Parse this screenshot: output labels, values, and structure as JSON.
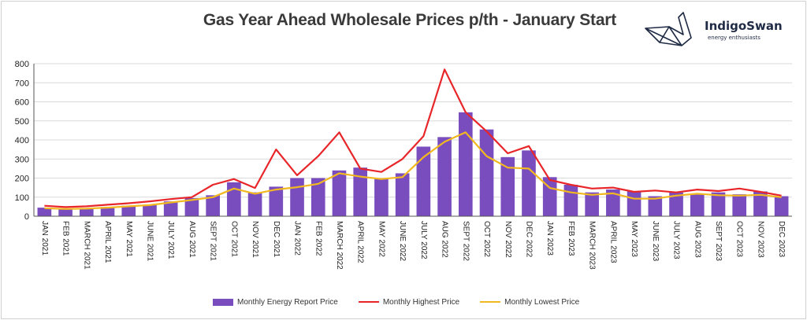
{
  "logo": {
    "name": "IndigoSwan",
    "tagline": "energy enthusiasts"
  },
  "colors": {
    "bar": "#7a4dbf",
    "high": "#e8262a",
    "low": "#f2b820",
    "grid": "#d9d9d9",
    "axis": "#555555"
  },
  "chart_data": {
    "type": "bar",
    "title": "Gas Year Ahead Wholesale Prices p/th - January Start",
    "xlabel": "",
    "ylabel": "",
    "ylim": [
      0,
      800
    ],
    "yticks": [
      0,
      100,
      200,
      300,
      400,
      500,
      600,
      700,
      800
    ],
    "grid": true,
    "legend_position": "bottom",
    "categories": [
      "JAN 2021",
      "FEB 2021",
      "MARCH 2021",
      "APRIL 2021",
      "MAY 2021",
      "JUNE 2021",
      "JULY 2021",
      "AUG 2021",
      "SEPT 2021",
      "OCT 2021",
      "NOV 2021",
      "DEC 2021",
      "JAN 2022",
      "FEB 2022",
      "MARCH 2022",
      "APRIL 2022",
      "MAY 2022",
      "JUNE 2022",
      "JULY 2022",
      "AUG 2022",
      "SEPT 2022",
      "OCT 2022",
      "NOV 2022",
      "DEC 2022",
      "JAN 2023",
      "FEB 2023",
      "MARCH 2023",
      "APRIL 2023",
      "MAY 2023",
      "JUNE 2023",
      "JULY 2023",
      "AUG 2023",
      "SEPT 2023",
      "OCT 2023",
      "NOV 2023",
      "DEC 2023"
    ],
    "series": [
      {
        "name": "Monthly Energy Report Price",
        "kind": "bar",
        "values": [
          45,
          40,
          42,
          48,
          55,
          60,
          78,
          95,
          110,
          178,
          125,
          155,
          200,
          200,
          240,
          255,
          200,
          225,
          365,
          415,
          545,
          455,
          310,
          345,
          205,
          165,
          125,
          140,
          130,
          105,
          125,
          115,
          125,
          115,
          130,
          105
        ]
      },
      {
        "name": "Monthly Highest Price",
        "kind": "line",
        "values": [
          55,
          48,
          52,
          60,
          68,
          78,
          90,
          100,
          165,
          195,
          148,
          350,
          215,
          315,
          440,
          250,
          232,
          300,
          420,
          770,
          545,
          445,
          330,
          368,
          190,
          165,
          145,
          150,
          128,
          135,
          125,
          140,
          132,
          145,
          128,
          108
        ]
      },
      {
        "name": "Monthly Lowest Price",
        "kind": "line",
        "values": [
          42,
          38,
          40,
          45,
          52,
          58,
          72,
          85,
          100,
          145,
          118,
          140,
          152,
          170,
          225,
          208,
          195,
          205,
          310,
          390,
          440,
          315,
          255,
          250,
          148,
          125,
          112,
          120,
          92,
          92,
          108,
          118,
          110,
          108,
          112,
          100
        ]
      }
    ]
  }
}
